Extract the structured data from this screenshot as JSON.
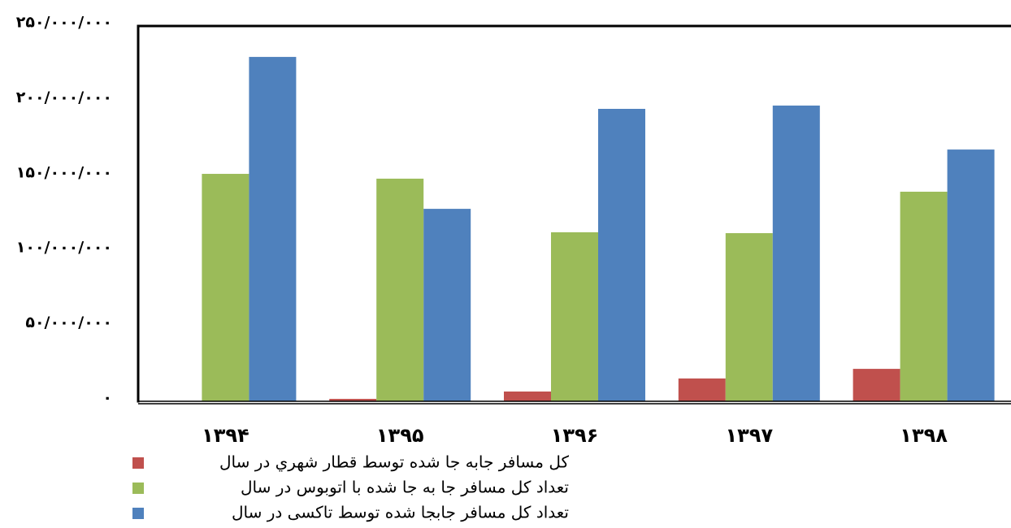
{
  "chart_data": {
    "type": "bar",
    "categories": [
      "۱۳۹۴",
      "۱۳۹۵",
      "۱۳۹۶",
      "۱۳۹۷",
      "۱۳۹۸"
    ],
    "series": [
      {
        "name": "کل مسافر جابه جا شده توسط قطار شهري در سال",
        "color": "#c0504d",
        "values": [
          0,
          1600000,
          6500000,
          15200000,
          21600000
        ]
      },
      {
        "name": "تعداد کل مسافر جا به جا شده با اتوبوس در سال",
        "color": "#9bbb59",
        "values": [
          151500000,
          148300000,
          112600000,
          112000000,
          139600000
        ]
      },
      {
        "name": "تعداد کل مسافر جابجا شده توسط تاکسی در سال",
        "color": "#4f81bd",
        "values": [
          229400000,
          128200000,
          194800000,
          197000000,
          167700000
        ]
      }
    ],
    "ylim": [
      0,
      250000000
    ],
    "yticks": [
      {
        "value": 0,
        "label": "۰"
      },
      {
        "value": 50000000,
        "label": "۵۰/۰۰۰/۰۰۰"
      },
      {
        "value": 100000000,
        "label": "۱۰۰/۰۰۰/۰۰۰"
      },
      {
        "value": 150000000,
        "label": "۱۵۰/۰۰۰/۰۰۰"
      },
      {
        "value": 200000000,
        "label": "۲۰۰/۰۰۰/۰۰۰"
      },
      {
        "value": 250000000,
        "label": "۲۵۰/۰۰۰/۰۰۰"
      }
    ],
    "grid": false,
    "legend": "bottom"
  }
}
